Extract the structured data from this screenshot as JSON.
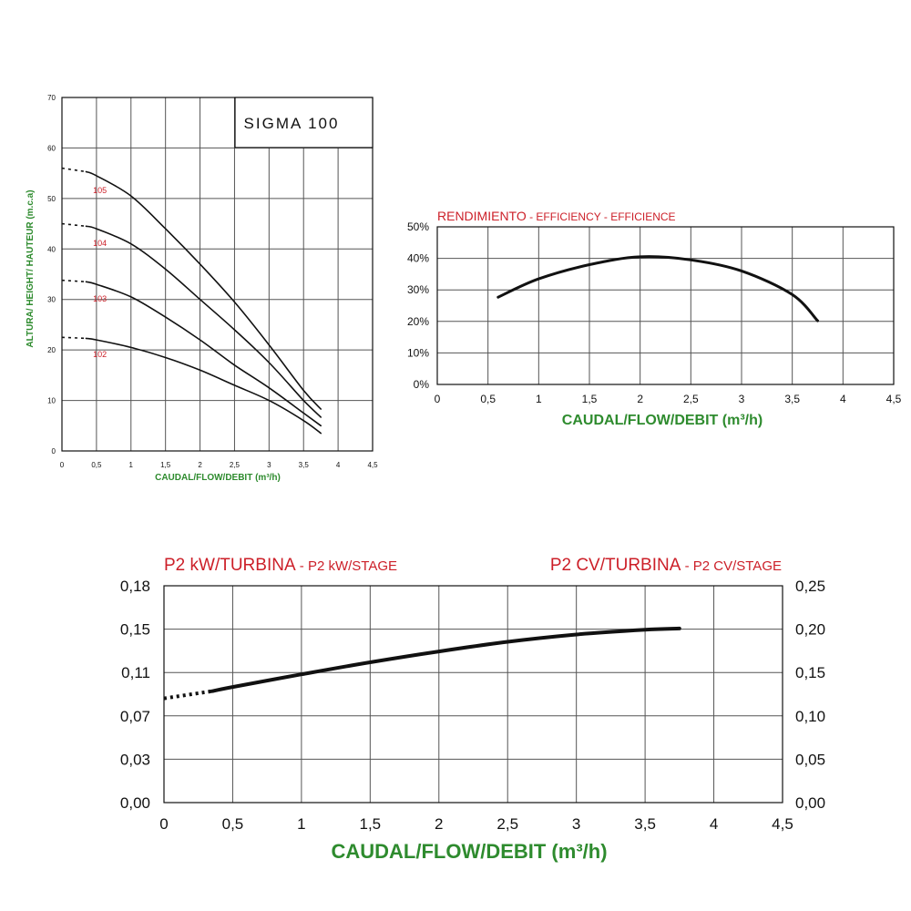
{
  "colors": {
    "title_red": "#cc1f28",
    "axis_green": "#2e8b2e",
    "curve": "#111111",
    "grid": "#555555"
  },
  "chart_data": [
    {
      "id": "head",
      "type": "line",
      "title": "SIGMA 100",
      "xlabel": "CAUDAL/FLOW/DEBIT (m³/h)",
      "ylabel": "ALTURA/ HEIGHT/ HAUTEUR (m.c.a)",
      "xlim": [
        0,
        4.5
      ],
      "ylim": [
        0,
        70
      ],
      "xticks": [
        0,
        0.5,
        1,
        1.5,
        2,
        2.5,
        3,
        3.5,
        4,
        4.5
      ],
      "xtick_labels": [
        "0",
        "0,5",
        "1",
        "1,5",
        "2",
        "2,5",
        "3",
        "3,5",
        "4",
        "4,5"
      ],
      "yticks": [
        0,
        10,
        20,
        30,
        40,
        50,
        60,
        70
      ],
      "ytick_labels": [
        "0",
        "10",
        "20",
        "30",
        "40",
        "50",
        "60",
        "70"
      ],
      "grid": true,
      "series": [
        {
          "name": "105",
          "extension": [
            [
              0,
              56
            ],
            [
              0.35,
              55.3
            ]
          ],
          "points": [
            [
              0.35,
              55.3
            ],
            [
              0.5,
              54.5
            ],
            [
              1.0,
              50.5
            ],
            [
              1.5,
              44
            ],
            [
              2.0,
              37
            ],
            [
              2.5,
              29.5
            ],
            [
              3.0,
              21
            ],
            [
              3.5,
              12
            ],
            [
              3.75,
              8.3
            ]
          ]
        },
        {
          "name": "104",
          "extension": [
            [
              0,
              45
            ],
            [
              0.35,
              44.5
            ]
          ],
          "points": [
            [
              0.35,
              44.5
            ],
            [
              0.5,
              44
            ],
            [
              1.0,
              41
            ],
            [
              1.5,
              36
            ],
            [
              2.0,
              30
            ],
            [
              2.5,
              24
            ],
            [
              3.0,
              17.5
            ],
            [
              3.5,
              10
            ],
            [
              3.75,
              6.7
            ]
          ]
        },
        {
          "name": "103",
          "extension": [
            [
              0,
              33.8
            ],
            [
              0.35,
              33.5
            ]
          ],
          "points": [
            [
              0.35,
              33.5
            ],
            [
              0.5,
              33
            ],
            [
              1.0,
              30.5
            ],
            [
              1.5,
              26.5
            ],
            [
              2.0,
              22
            ],
            [
              2.5,
              17
            ],
            [
              3.0,
              12.5
            ],
            [
              3.5,
              7.5
            ],
            [
              3.75,
              5
            ]
          ]
        },
        {
          "name": "102",
          "extension": [
            [
              0,
              22.5
            ],
            [
              0.35,
              22.3
            ]
          ],
          "points": [
            [
              0.35,
              22.3
            ],
            [
              0.5,
              22
            ],
            [
              1.0,
              20.5
            ],
            [
              1.5,
              18.5
            ],
            [
              2.0,
              16
            ],
            [
              2.5,
              13
            ],
            [
              3.0,
              10
            ],
            [
              3.5,
              6
            ],
            [
              3.75,
              3.5
            ]
          ]
        }
      ]
    },
    {
      "id": "efficiency",
      "type": "line",
      "title_main": "RENDIMIENTO",
      "title_sub": " - EFFICIENCY - EFFICIENCE",
      "xlabel": "CAUDAL/FLOW/DEBIT (m³/h)",
      "xlim": [
        0,
        4.5
      ],
      "ylim": [
        0,
        50
      ],
      "xticks": [
        0,
        0.5,
        1,
        1.5,
        2,
        2.5,
        3,
        3.5,
        4,
        4.5
      ],
      "xtick_labels": [
        "0",
        "0,5",
        "1",
        "1,5",
        "2",
        "2,5",
        "3",
        "3,5",
        "4",
        "4,5"
      ],
      "yticks": [
        0,
        10,
        20,
        30,
        40,
        50
      ],
      "ytick_labels": [
        "0%",
        "10%",
        "20%",
        "30%",
        "40%",
        "50%"
      ],
      "grid": true,
      "series": [
        {
          "name": "efficiency",
          "points": [
            [
              0.6,
              27.7
            ],
            [
              1.0,
              33.5
            ],
            [
              1.5,
              38
            ],
            [
              2.0,
              40.5
            ],
            [
              2.5,
              39.5
            ],
            [
              3.0,
              36
            ],
            [
              3.5,
              28.5
            ],
            [
              3.75,
              20.2
            ]
          ]
        }
      ]
    },
    {
      "id": "power",
      "type": "line",
      "title_left_main": "P2 kW/TURBINA",
      "title_left_sub": " - P2 kW/STAGE",
      "title_right_main": "P2 CV/TURBINA",
      "title_right_sub": " - P2 CV/STAGE",
      "xlabel": "CAUDAL/FLOW/DEBIT (m³/h)",
      "xlim": [
        0,
        4.5
      ],
      "ylim": [
        0,
        0.18
      ],
      "y2lim": [
        0,
        0.25
      ],
      "xticks": [
        0,
        0.5,
        1,
        1.5,
        2,
        2.5,
        3,
        3.5,
        4,
        4.5
      ],
      "xtick_labels": [
        "0",
        "0,5",
        "1",
        "1,5",
        "2",
        "2,5",
        "3",
        "3,5",
        "4",
        "4,5"
      ],
      "ytick_labels": [
        "0,00",
        "0,03",
        "0,07",
        "0,11",
        "0,15",
        "0,18"
      ],
      "y2tick_labels": [
        "0,00",
        "0,05",
        "0,10",
        "0,15",
        "0,20",
        "0,25"
      ],
      "grid": true,
      "series": [
        {
          "name": "p2",
          "extension": [
            [
              0,
              0.0865
            ],
            [
              0.35,
              0.0925
            ]
          ],
          "points": [
            [
              0.35,
              0.0925
            ],
            [
              0.5,
              0.096
            ],
            [
              1.0,
              0.1065
            ],
            [
              1.5,
              0.1165
            ],
            [
              2.0,
              0.1255
            ],
            [
              2.5,
              0.1335
            ],
            [
              3.0,
              0.1395
            ],
            [
              3.5,
              0.1435
            ],
            [
              3.75,
              0.1445
            ]
          ]
        }
      ]
    }
  ]
}
